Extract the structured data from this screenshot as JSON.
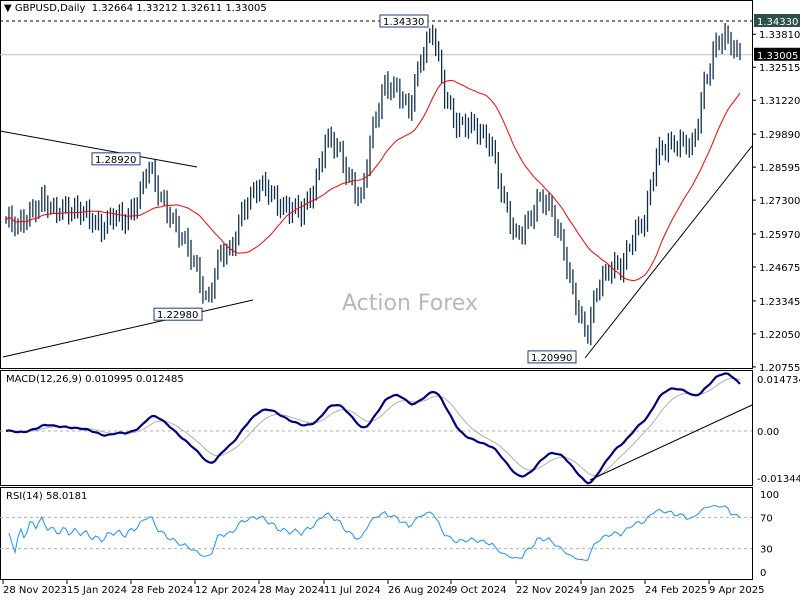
{
  "header": {
    "symbol": "GBPUSD,Daily",
    "open": "1.32664",
    "high": "1.33212",
    "low": "1.32611",
    "close": "1.33005"
  },
  "watermark": "Action Forex",
  "colors": {
    "bars": "#10304e",
    "ma": "#ff0000",
    "macd": "#000080",
    "signal": "#b0b0b0",
    "rsi": "#1e90ff",
    "trend": "#000000"
  },
  "chart_data": {
    "type": "bar",
    "title": "GBPUSD,Daily",
    "ylim": [
      1.20755,
      1.3433
    ],
    "price_ticks": [
      "1.33810",
      "1.32515",
      "1.31220",
      "1.29890",
      "1.28595",
      "1.27300",
      "1.25970",
      "1.24675",
      "1.23345",
      "1.22050",
      "1.20755"
    ],
    "tag_high": "1.34330",
    "tag_current": "1.33005",
    "x_ticks": [
      "28 Nov 2023",
      "15 Jan 2024",
      "28 Feb 2024",
      "12 Apr 2024",
      "28 May 2024",
      "11 Jul 2024",
      "26 Aug 2024",
      "9 Oct 2024",
      "22 Nov 2024",
      "9 Jan 2025",
      "24 Feb 2025",
      "9 Apr 2025"
    ],
    "closes": [
      1.2652,
      1.2613,
      1.2691,
      1.273,
      1.2672,
      1.2711,
      1.2691,
      1.2652,
      1.2632,
      1.2672,
      1.2632,
      1.273,
      1.2868,
      1.273,
      1.2672,
      1.2573,
      1.2456,
      1.2338,
      1.2515,
      1.2515,
      1.2711,
      1.277,
      1.277,
      1.273,
      1.2691,
      1.2672,
      1.2789,
      1.2966,
      1.2927,
      1.2829,
      1.273,
      1.3005,
      1.3201,
      1.3162,
      1.3064,
      1.33,
      1.3398,
      1.3143,
      1.3044,
      1.3025,
      1.2986,
      1.2966,
      1.273,
      1.2573,
      1.2652,
      1.273,
      1.2691,
      1.2573,
      1.2338,
      1.2181,
      1.2416,
      1.2456,
      1.2456,
      1.2613,
      1.2652,
      1.2907,
      1.2966,
      1.2946,
      1.2927,
      1.3201,
      1.3339,
      1.3358,
      1.33
    ],
    "annotations": [
      {
        "label": "1.34330",
        "price": 1.3433
      },
      {
        "label": "1.28920",
        "price": 1.2892
      },
      {
        "label": "1.22980",
        "price": 1.2298
      },
      {
        "label": "1.20990",
        "price": 1.2099
      }
    ],
    "macd": {
      "label": "MACD(12,26,9) 0.010995 0.012485",
      "ticks": [
        "0.014734",
        "0.00",
        "-0.013442"
      ],
      "range": [
        -0.013442,
        0.014734
      ]
    },
    "rsi": {
      "label": "RSI(14) 58.0181",
      "ticks": [
        "100",
        "70",
        "30",
        "0"
      ],
      "levels": [
        70,
        30
      ]
    }
  }
}
